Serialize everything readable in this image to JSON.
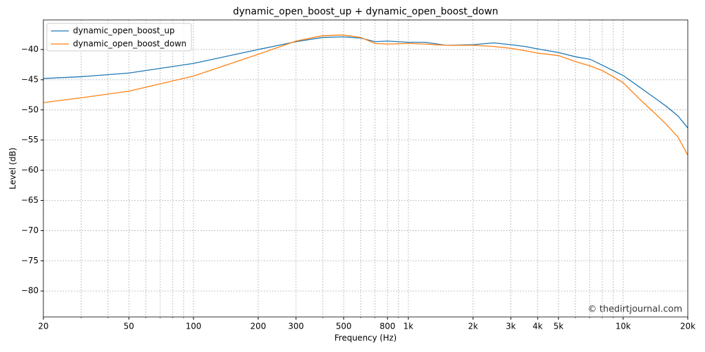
{
  "chart_data": {
    "type": "line",
    "title": "dynamic_open_boost_up + dynamic_open_boost_down",
    "x_label": "Frequency (Hz)",
    "y_label": "Level (dB)",
    "annotation": "© thedirtjournal.com",
    "x_scale": "log",
    "grid": true,
    "legend": "upper left",
    "xlim": [
      20,
      20000
    ],
    "ylim": [
      -84.3,
      -35.1
    ],
    "xticks": [
      20,
      50,
      100,
      200,
      300,
      500,
      800,
      {
        "value": 1000,
        "label": "1k"
      },
      {
        "value": 2000,
        "label": "2k"
      },
      {
        "value": 3000,
        "label": "3k"
      },
      {
        "value": 4000,
        "label": "4k"
      },
      {
        "value": 5000,
        "label": "5k"
      },
      {
        "value": 10000,
        "label": "10k"
      },
      {
        "value": 20000,
        "label": "20k"
      }
    ],
    "xminor_ticks": [
      30,
      40,
      60,
      70,
      80,
      90,
      400,
      600,
      700,
      900,
      6000,
      7000,
      8000,
      9000
    ],
    "yticks": [
      {
        "value": -80,
        "label": "−80"
      },
      {
        "value": -75,
        "label": "−75"
      },
      {
        "value": -70,
        "label": "−70"
      },
      {
        "value": -65,
        "label": "−65"
      },
      {
        "value": -60,
        "label": "−60"
      },
      {
        "value": -55,
        "label": "−55"
      },
      {
        "value": -50,
        "label": "−50"
      },
      {
        "value": -45,
        "label": "−45"
      },
      {
        "value": -40,
        "label": "−40"
      }
    ],
    "x": [
      20,
      30,
      50,
      100,
      200,
      300,
      400,
      500,
      600,
      700,
      800,
      1000,
      1200,
      1500,
      2000,
      2500,
      3000,
      3500,
      4000,
      5000,
      6000,
      7000,
      8000,
      9000,
      10000,
      12000,
      14000,
      16000,
      18000,
      20000
    ],
    "series": [
      {
        "name": "dynamic_open_boost_up",
        "color": "#1f77b4",
        "values": [
          -44.8,
          -44.5,
          -43.9,
          -42.3,
          -40.0,
          -38.7,
          -38.0,
          -37.9,
          -38.1,
          -38.7,
          -38.6,
          -38.8,
          -38.8,
          -39.3,
          -39.2,
          -38.9,
          -39.2,
          -39.5,
          -39.9,
          -40.5,
          -41.2,
          -41.6,
          -42.6,
          -43.5,
          -44.3,
          -46.3,
          -48.0,
          -49.5,
          -51.0,
          -53.0
        ]
      },
      {
        "name": "dynamic_open_boost_down",
        "color": "#ff7f0e",
        "values": [
          -48.8,
          -48.0,
          -46.9,
          -44.4,
          -40.8,
          -38.6,
          -37.7,
          -37.6,
          -38.0,
          -39.0,
          -39.1,
          -39.0,
          -39.1,
          -39.3,
          -39.3,
          -39.5,
          -39.8,
          -40.2,
          -40.6,
          -41.0,
          -42.0,
          -42.7,
          -43.5,
          -44.5,
          -45.5,
          -48.3,
          -50.5,
          -52.5,
          -54.5,
          -57.5
        ]
      }
    ]
  }
}
